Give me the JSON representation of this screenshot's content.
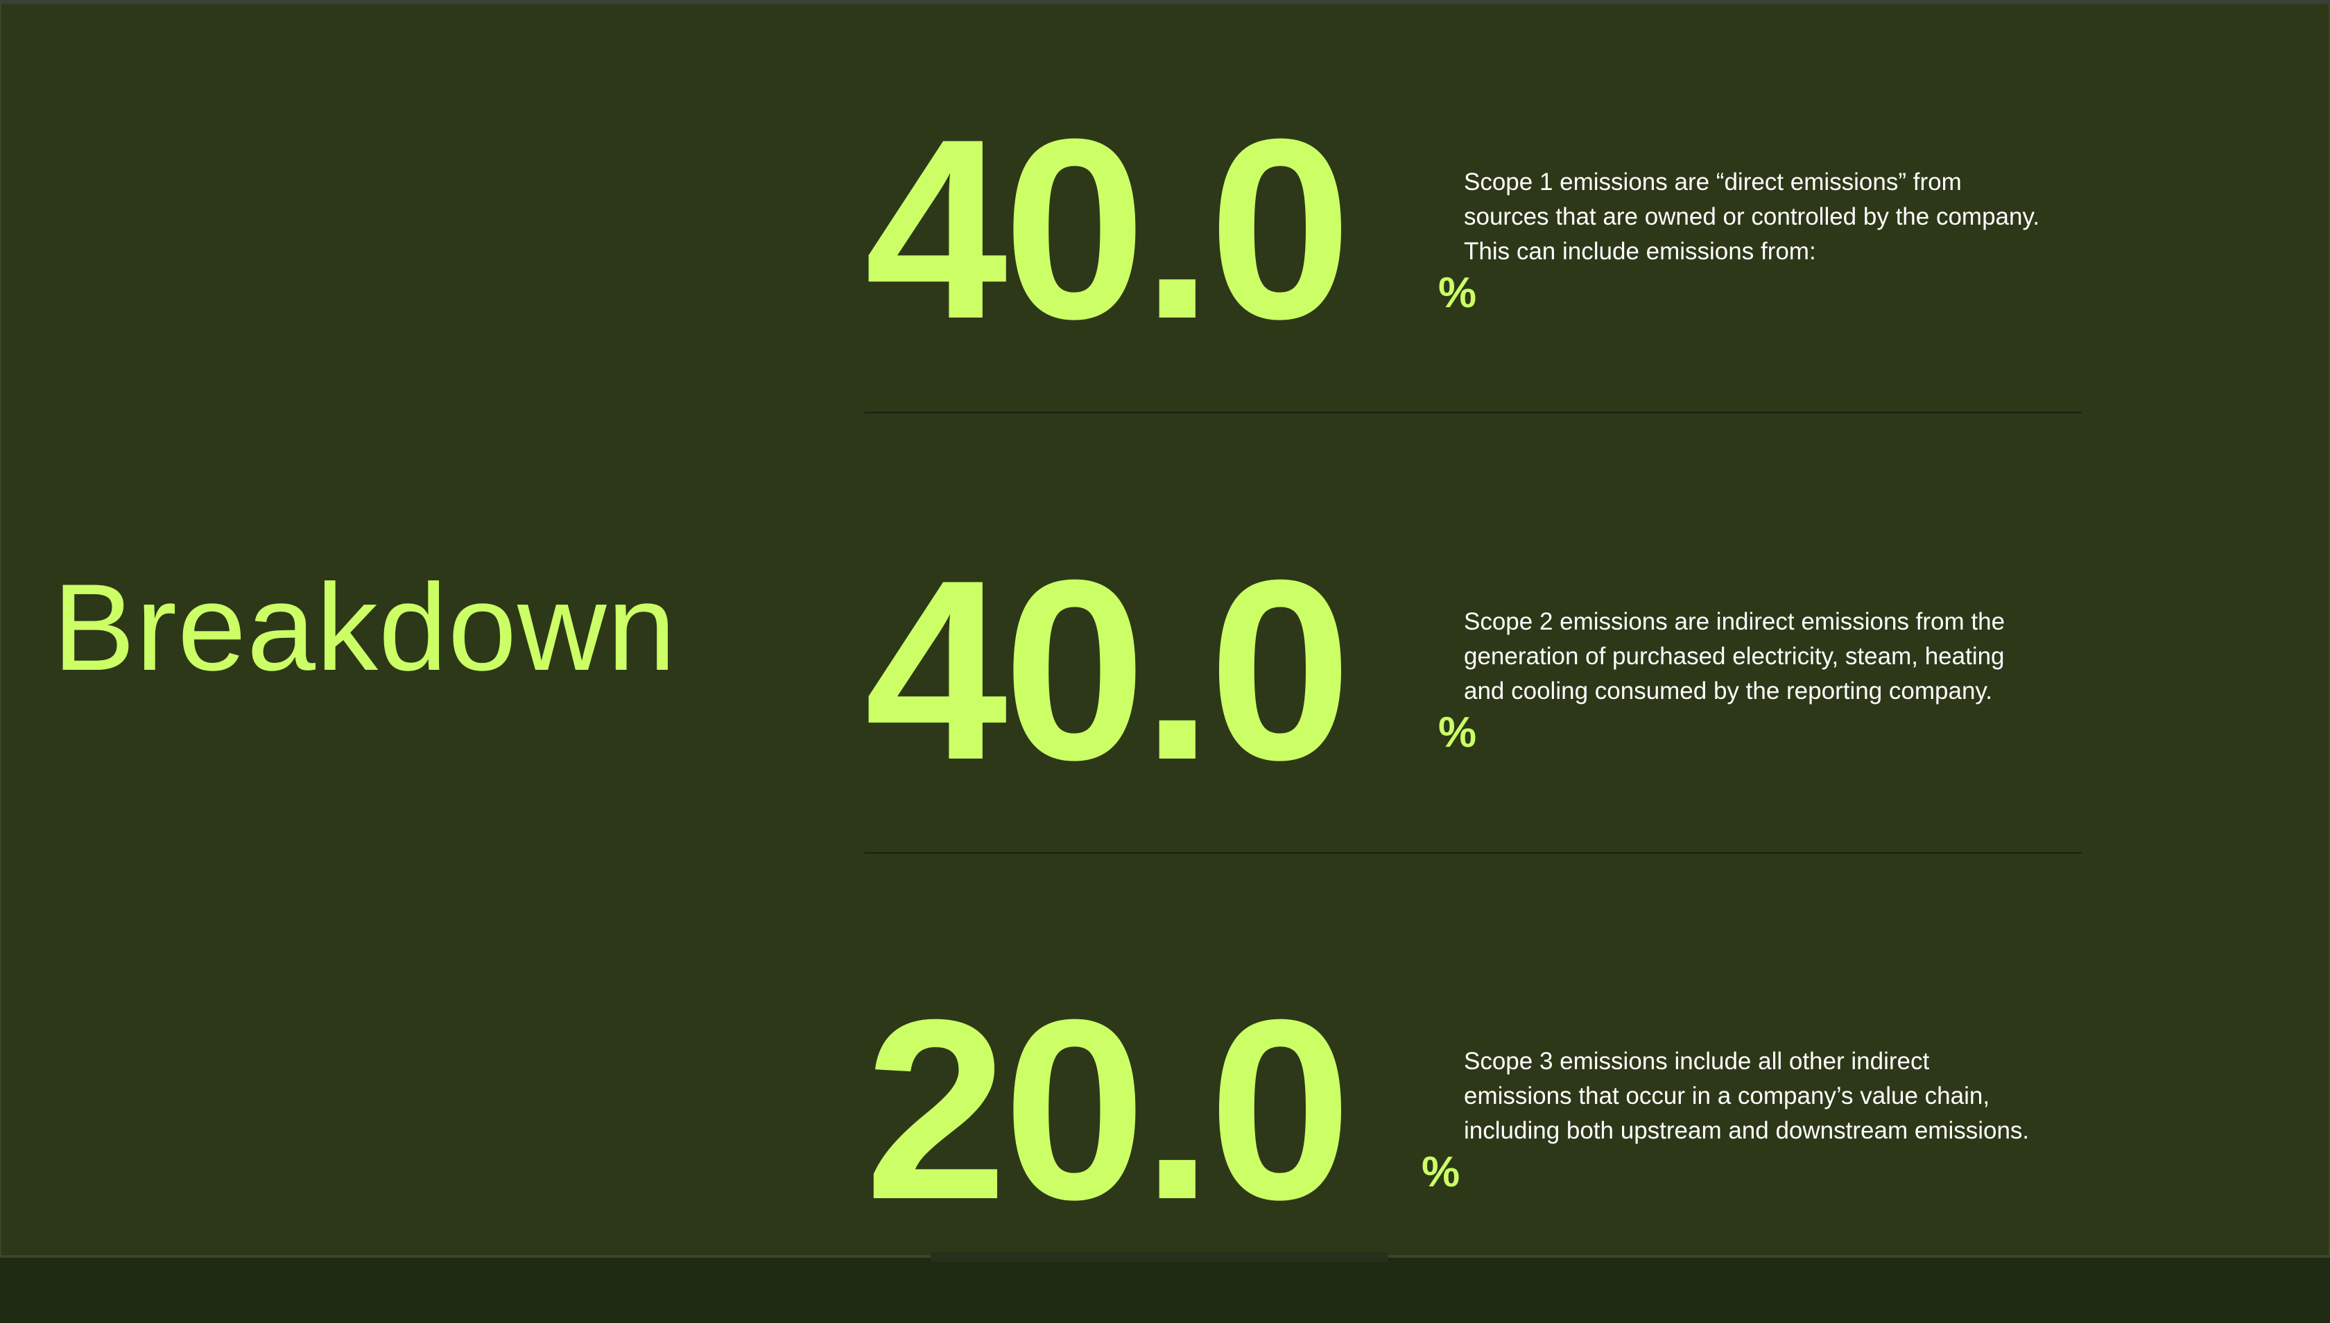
{
  "section": {
    "title": "Breakdown"
  },
  "scopes": [
    {
      "value": "40.0",
      "unit": "%",
      "description_lines": [
        "Scope 1 emissions are “direct emissions” from",
        "sources that are owned or controlled by the company.",
        "This can include emissions from:"
      ]
    },
    {
      "value": "40.0",
      "unit": "%",
      "description_lines": [
        "Scope 2 emissions are indirect emissions from the",
        "generation of purchased electricity, steam, heating",
        "and cooling consumed by the reporting company."
      ]
    },
    {
      "value": "20.0",
      "unit": "%",
      "description_lines": [
        "Scope 3 emissions include all other indirect",
        "emissions that occur in a company’s value chain,",
        "including both upstream and downstream emissions."
      ]
    }
  ],
  "colors": {
    "background": "#2d3819",
    "accent": "#ccff66",
    "text": "#ffffff",
    "divider": "#182010"
  }
}
